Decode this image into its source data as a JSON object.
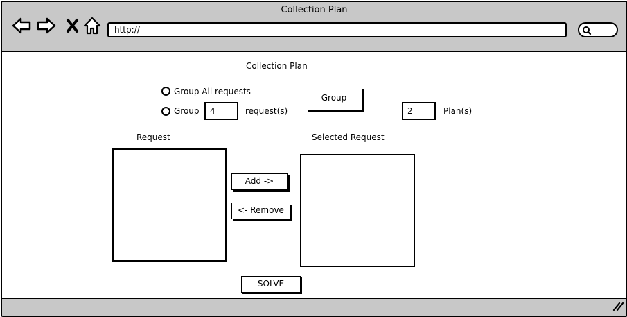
{
  "window": {
    "title": "Collection Plan"
  },
  "browser": {
    "url": "http://",
    "icons": [
      "back-arrow-icon",
      "forward-arrow-icon",
      "close-icon",
      "home-icon",
      "search-icon",
      "resize-grip-icon"
    ]
  },
  "page": {
    "title": "Collection Plan",
    "grouping": {
      "option_all_label": "Group All requests",
      "option_group_label": "Group",
      "group_count_value": "4",
      "requests_unit_label": "request(s)",
      "group_button_label": "Group",
      "plans_value": "2",
      "plans_unit_label": "Plan(s)"
    },
    "request_list": {
      "header": "Request",
      "items": []
    },
    "selected_list": {
      "header": "Selected Request",
      "items": []
    },
    "add_button_label": "Add ->",
    "remove_button_label": "<- Remove",
    "solve_button_label": "SOLVE"
  }
}
